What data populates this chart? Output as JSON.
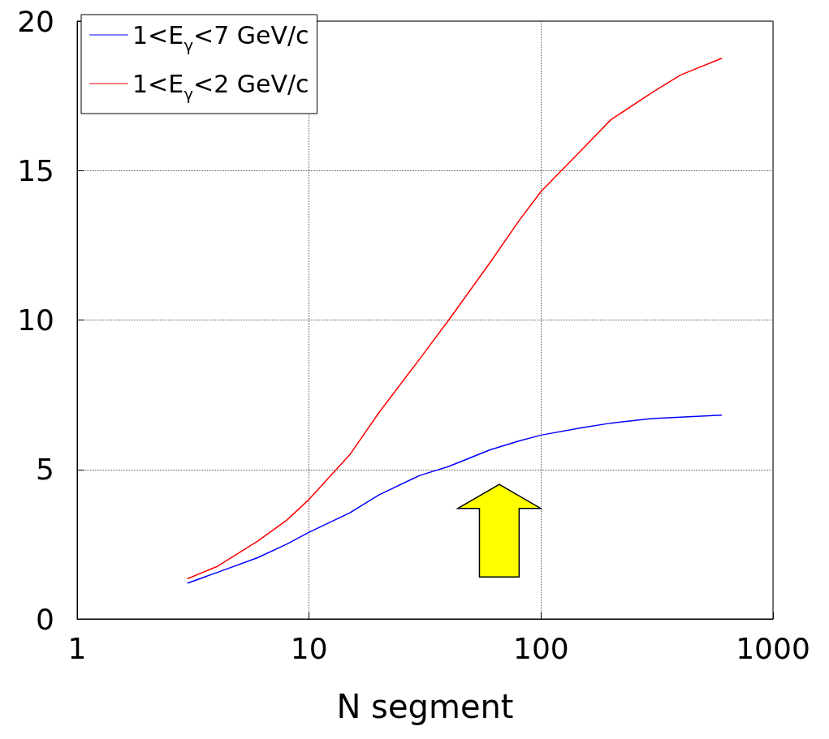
{
  "chart_data": {
    "type": "line",
    "xlabel": "N segment",
    "log": "x",
    "xlim": [
      1,
      1000
    ],
    "xticks": [
      1,
      10,
      100,
      1000
    ],
    "ylim": [
      0,
      20
    ],
    "yticks": [
      0,
      5,
      10,
      15,
      20
    ],
    "grid": true,
    "legend": "top left",
    "marker": "none",
    "line_style": "solid",
    "x": [
      3,
      4,
      6,
      8,
      10,
      15,
      20,
      30,
      40,
      60,
      80,
      100,
      150,
      200,
      300,
      400,
      600
    ],
    "series": [
      {
        "name": "1<E$_{γ}$<7 GeV/c",
        "color": "#0000ff",
        "values": [
          1.2,
          1.55,
          2.05,
          2.5,
          2.9,
          3.55,
          4.15,
          4.8,
          5.1,
          5.65,
          5.95,
          6.15,
          6.4,
          6.55,
          6.7,
          6.75,
          6.82
        ]
      },
      {
        "name": "1<E$_{γ}$<2 GeV/c",
        "color": "#ff0000",
        "values": [
          1.35,
          1.75,
          2.6,
          3.3,
          4.0,
          5.5,
          6.9,
          8.7,
          10.0,
          11.9,
          13.3,
          14.3,
          15.7,
          16.7,
          17.6,
          18.2,
          18.75
        ]
      }
    ]
  }
}
